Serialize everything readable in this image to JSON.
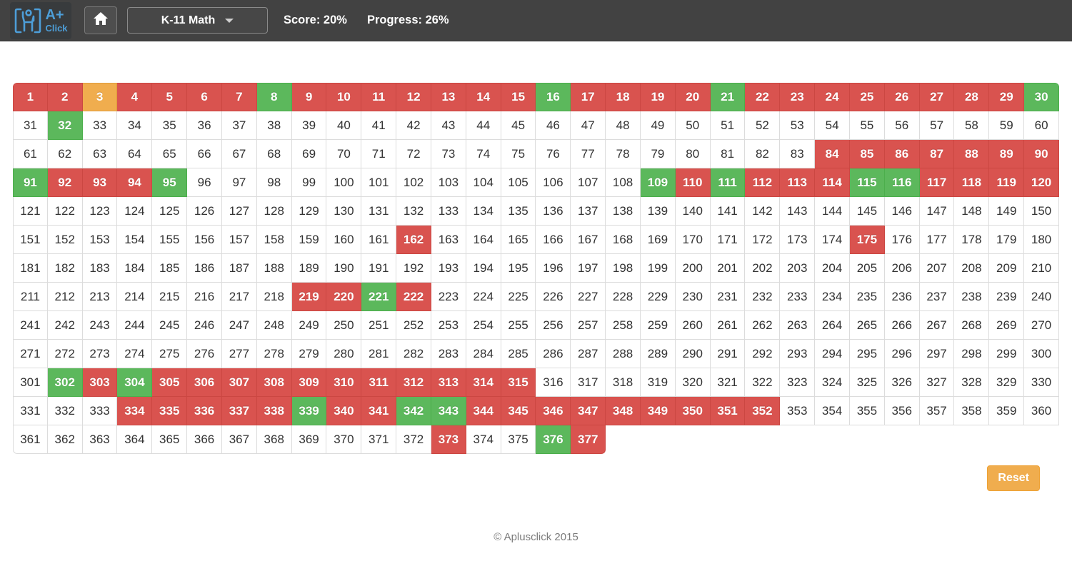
{
  "header": {
    "logo": {
      "main": "A+",
      "sub": "Click",
      "icon": "person-in-brackets-icon"
    },
    "home": {
      "icon": "home-icon"
    },
    "dropdown": {
      "label": "K-11 Math",
      "icon": "chevron-down-icon"
    },
    "score_label": "Score: 20%",
    "progress_label": "Progress: 26%"
  },
  "grid": {
    "total": 377,
    "columns": 30,
    "states": {
      "red": [
        1,
        2,
        4,
        5,
        6,
        7,
        9,
        10,
        11,
        12,
        13,
        14,
        15,
        17,
        18,
        19,
        20,
        22,
        23,
        24,
        25,
        26,
        27,
        28,
        29,
        84,
        85,
        86,
        87,
        88,
        89,
        90,
        92,
        93,
        94,
        110,
        112,
        113,
        114,
        117,
        118,
        119,
        120,
        162,
        175,
        219,
        220,
        222,
        303,
        305,
        306,
        307,
        308,
        309,
        310,
        311,
        312,
        313,
        314,
        315,
        334,
        335,
        336,
        337,
        338,
        340,
        341,
        344,
        345,
        346,
        347,
        348,
        349,
        350,
        351,
        352,
        373,
        377
      ],
      "green": [
        8,
        16,
        21,
        30,
        32,
        91,
        95,
        109,
        111,
        115,
        116,
        221,
        302,
        304,
        339,
        342,
        343,
        376
      ],
      "orange": [
        3
      ]
    }
  },
  "reset_label": "Reset",
  "footer": {
    "copyright": "© Aplusclick 2015"
  },
  "colors": {
    "red": "#d9534f",
    "green": "#5cb85c",
    "orange": "#f0ad4e",
    "header_bg": "#424242",
    "logo_blue": "#4d9ed8",
    "reset_orange": "#f0ad4e"
  }
}
